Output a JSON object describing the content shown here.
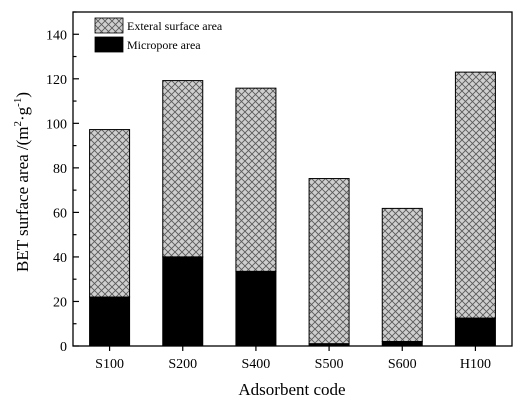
{
  "chart_data": {
    "type": "bar",
    "stacked": true,
    "categories": [
      "S100",
      "S200",
      "S400",
      "S500",
      "S600",
      "H100"
    ],
    "series": [
      {
        "name": "Micropore area",
        "values": [
          22,
          40,
          33.5,
          1,
          2,
          12.5
        ],
        "color": "#000000",
        "pattern": "solid"
      },
      {
        "name": "Exteral surface area",
        "values": [
          75.2,
          79.2,
          82.3,
          74.2,
          59.8,
          110.5
        ],
        "color": "#c8c8c8",
        "pattern": "crosshatch"
      }
    ],
    "totals": [
      97.2,
      119.2,
      115.8,
      75.2,
      61.8,
      123
    ],
    "xlabel": "Adsorbent code",
    "ylabel": "BET surface area /(m²·g⁻¹)",
    "ylim": [
      0,
      150
    ],
    "yticks": [
      0,
      20,
      40,
      60,
      80,
      100,
      120,
      140
    ],
    "grid": false,
    "legend_position": "top-left",
    "legend": [
      {
        "label": "Exteral surface area",
        "pattern": "crosshatch"
      },
      {
        "label": "Micropore area",
        "pattern": "solid"
      }
    ]
  }
}
